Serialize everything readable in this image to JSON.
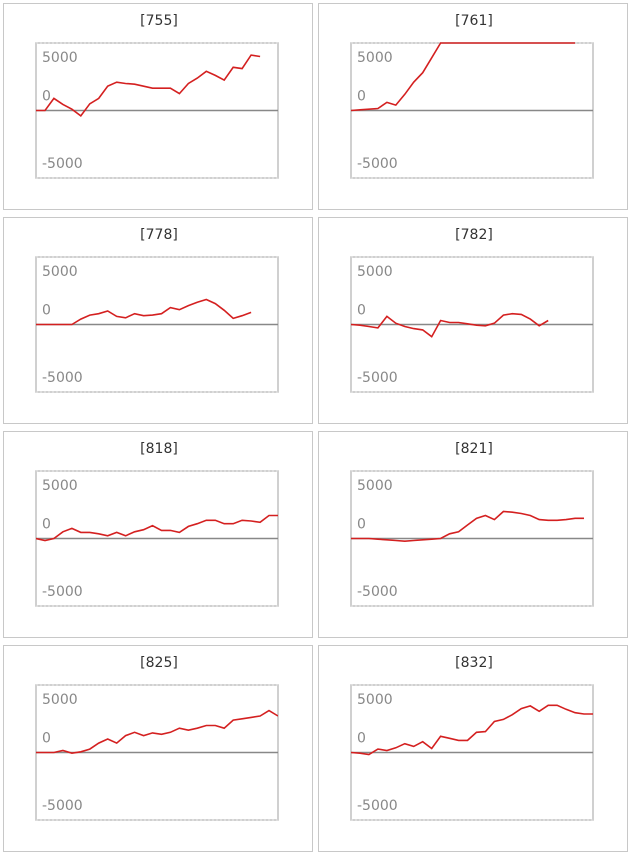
{
  "chart_data": [
    {
      "type": "line",
      "title": "[755]",
      "color": "#d42020",
      "ylim": [
        -5000,
        5000
      ],
      "yticks": [
        -5000,
        0,
        5000
      ],
      "grid": true,
      "values": [
        0,
        0,
        900,
        450,
        100,
        -400,
        500,
        900,
        1800,
        2100,
        2000,
        1950,
        1800,
        1650,
        1650,
        1650,
        1250,
        2000,
        2400,
        2900,
        2600,
        2250,
        3200,
        3100,
        4100,
        4000,
        null,
        null
      ]
    },
    {
      "type": "line",
      "title": "[761]",
      "color": "#d42020",
      "ylim": [
        -5000,
        5000
      ],
      "yticks": [
        -5000,
        0,
        5000
      ],
      "grid": true,
      "values": [
        0,
        50,
        100,
        150,
        600,
        400,
        1200,
        2100,
        2800,
        3900,
        5000,
        5000,
        5000,
        5000,
        5000,
        5000,
        5000,
        5000,
        5000,
        5000,
        5000,
        5000,
        5000,
        5000,
        5000,
        5000,
        null,
        null
      ]
    },
    {
      "type": "line",
      "title": "[778]",
      "color": "#d42020",
      "ylim": [
        -5000,
        5000
      ],
      "yticks": [
        -5000,
        0,
        5000
      ],
      "grid": true,
      "values": [
        0,
        0,
        0,
        0,
        0,
        400,
        700,
        800,
        1000,
        600,
        500,
        800,
        650,
        700,
        800,
        1250,
        1100,
        1400,
        1650,
        1850,
        1550,
        1050,
        450,
        650,
        900,
        null,
        null,
        null
      ]
    },
    {
      "type": "line",
      "title": "[782]",
      "color": "#d42020",
      "ylim": [
        -5000,
        5000
      ],
      "yticks": [
        -5000,
        0,
        5000
      ],
      "grid": true,
      "values": [
        0,
        -50,
        -150,
        -250,
        600,
        100,
        -150,
        -300,
        -400,
        -900,
        300,
        150,
        150,
        50,
        -50,
        -100,
        100,
        700,
        800,
        750,
        400,
        -100,
        300,
        null,
        null,
        null,
        null,
        null
      ]
    },
    {
      "type": "line",
      "title": "[818]",
      "color": "#d42020",
      "ylim": [
        -5000,
        5000
      ],
      "yticks": [
        -5000,
        0,
        5000
      ],
      "grid": true,
      "values": [
        0,
        -150,
        0,
        500,
        750,
        450,
        450,
        350,
        200,
        450,
        200,
        500,
        650,
        950,
        600,
        600,
        450,
        900,
        1100,
        1350,
        1350,
        1100,
        1100,
        1350,
        1300,
        1200,
        1700,
        1700
      ]
    },
    {
      "type": "line",
      "title": "[821]",
      "color": "#d42020",
      "ylim": [
        -5000,
        5000
      ],
      "yticks": [
        -5000,
        0,
        5000
      ],
      "grid": true,
      "values": [
        0,
        0,
        0,
        -50,
        -100,
        -150,
        -200,
        -150,
        -100,
        -50,
        0,
        350,
        500,
        1000,
        1500,
        1700,
        1400,
        2000,
        1950,
        1850,
        1700,
        1400,
        1350,
        1350,
        1400,
        1500,
        1500,
        null
      ]
    },
    {
      "type": "line",
      "title": "[825]",
      "color": "#d42020",
      "ylim": [
        -5000,
        5000
      ],
      "yticks": [
        -5000,
        0,
        5000
      ],
      "grid": true,
      "values": [
        0,
        0,
        0,
        150,
        -50,
        50,
        250,
        700,
        1000,
        700,
        1250,
        1500,
        1250,
        1450,
        1350,
        1500,
        1800,
        1650,
        1800,
        2000,
        2000,
        1800,
        2400,
        2500,
        2600,
        2700,
        3100,
        2700
      ]
    },
    {
      "type": "line",
      "title": "[832]",
      "color": "#d42020",
      "ylim": [
        -5000,
        5000
      ],
      "yticks": [
        -5000,
        0,
        5000
      ],
      "grid": true,
      "values": [
        0,
        -50,
        -150,
        250,
        150,
        350,
        650,
        450,
        800,
        300,
        1200,
        1050,
        900,
        900,
        1500,
        1550,
        2300,
        2450,
        2800,
        3250,
        3450,
        3050,
        3500,
        3500,
        3200,
        2950,
        2850,
        2850
      ]
    }
  ]
}
